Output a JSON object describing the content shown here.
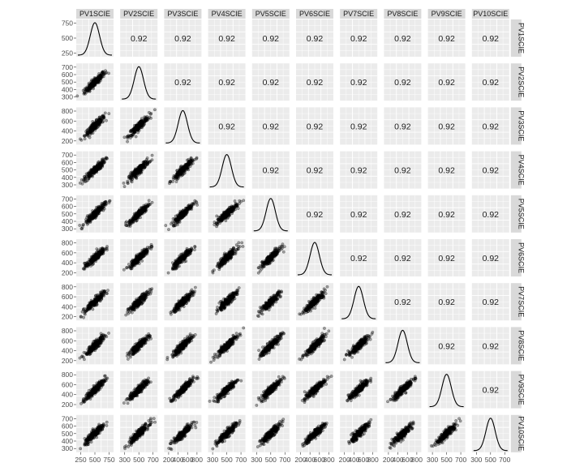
{
  "chart_data": {
    "type": "scatter",
    "subtype": "scatterplot-matrix",
    "variables": [
      "PV1SCIE",
      "PV2SCIE",
      "PV3SCIE",
      "PV4SCIE",
      "PV5SCIE",
      "PV6SCIE",
      "PV7SCIE",
      "PV8SCIE",
      "PV9SCIE",
      "PV10SCIE"
    ],
    "upper_panel": "correlation",
    "correlation_label": "0.92",
    "diagonal_panel": "density",
    "lower_panel": "scatter",
    "density": {
      "mean": 500,
      "sd": 95
    },
    "y_ticks": [
      [
        "250",
        "500",
        "750"
      ],
      [
        "300",
        "400",
        "500",
        "600",
        "700"
      ],
      [
        "200",
        "400",
        "600",
        "800"
      ],
      [
        "300",
        "400",
        "500",
        "600",
        "700"
      ],
      [
        "300",
        "400",
        "500",
        "600",
        "700"
      ],
      [
        "200",
        "400",
        "600",
        "800"
      ],
      [
        "200",
        "400",
        "600",
        "800"
      ],
      [
        "200",
        "400",
        "600",
        "800"
      ],
      [
        "200",
        "400",
        "600",
        "800"
      ],
      [
        "300",
        "400",
        "500",
        "600",
        "700"
      ]
    ],
    "x_ticks": [
      [
        "250",
        "500",
        "750"
      ],
      [
        "300",
        "500",
        "700"
      ],
      [
        "200",
        "400",
        "600",
        "800"
      ],
      [
        "300",
        "500",
        "700"
      ],
      [
        "300",
        "500",
        "700"
      ],
      [
        "200",
        "400",
        "600",
        "800"
      ],
      [
        "200",
        "400",
        "600",
        "800"
      ],
      [
        "200",
        "400",
        "600",
        "800"
      ],
      [
        "300",
        "500",
        "700"
      ],
      [
        "300",
        "500",
        "700"
      ]
    ],
    "x_range": [
      150,
      850
    ],
    "grid": true,
    "legend": "none",
    "colors": {
      "panel_bg": "#ebebeb",
      "strip_bg": "#d9d9d9",
      "grid": "#ffffff",
      "points": "#000000"
    }
  }
}
